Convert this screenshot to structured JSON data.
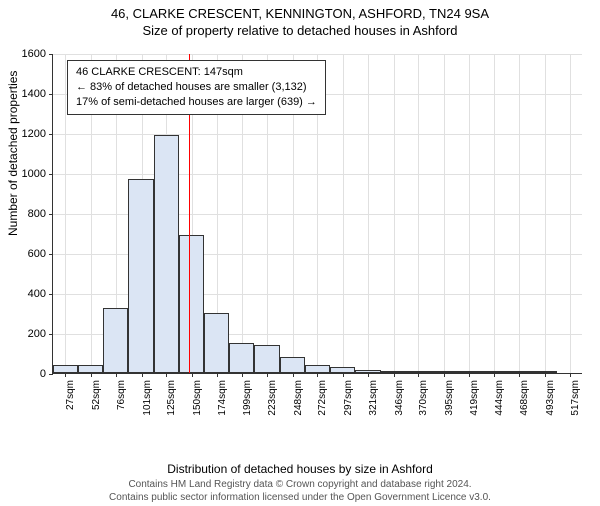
{
  "title_line1": "46, CLARKE CRESCENT, KENNINGTON, ASHFORD, TN24 9SA",
  "title_line2": "Size of property relative to detached houses in Ashford",
  "ylabel": "Number of detached properties",
  "xlabel": "Distribution of detached houses by size in Ashford",
  "footer_line1": "Contains HM Land Registry data © Crown copyright and database right 2024.",
  "footer_line2": "Contains public sector information licensed under the Open Government Licence v3.0.",
  "info_box": {
    "line1": "46 CLARKE CRESCENT: 147sqm",
    "line2": "← 83% of detached houses are smaller (3,132)",
    "line3": "17% of semi-detached houses are larger (639) →"
  },
  "chart": {
    "type": "histogram",
    "background_color": "#ffffff",
    "grid_color": "#e0e0e0",
    "axis_color": "#333333",
    "bar_fill": "#dbe5f4",
    "bar_border": "#333333",
    "ref_line_color": "#ff0000",
    "ref_value": 147,
    "ylim": [
      0,
      1600
    ],
    "ytick_step": 200,
    "xlim": [
      15,
      530
    ],
    "xtick_start": 27,
    "xtick_step": 24.5,
    "xtick_suffix": "sqm",
    "bar_bin_width": 24.5,
    "title_fontsize": 13,
    "label_fontsize": 12,
    "tick_fontsize": 11,
    "xtick_fontsize": 10,
    "info_fontsize": 11,
    "categories_start": 27,
    "values": [
      40,
      40,
      325,
      970,
      1190,
      690,
      300,
      150,
      140,
      80,
      40,
      30,
      15,
      10,
      8,
      8,
      5,
      5,
      3,
      3,
      0
    ],
    "xticks": [
      27,
      52,
      76,
      101,
      125,
      150,
      174,
      199,
      223,
      248,
      272,
      297,
      321,
      346,
      370,
      395,
      419,
      444,
      468,
      493,
      517
    ],
    "yticks": [
      0,
      200,
      400,
      600,
      800,
      1000,
      1200,
      1400,
      1600
    ]
  }
}
